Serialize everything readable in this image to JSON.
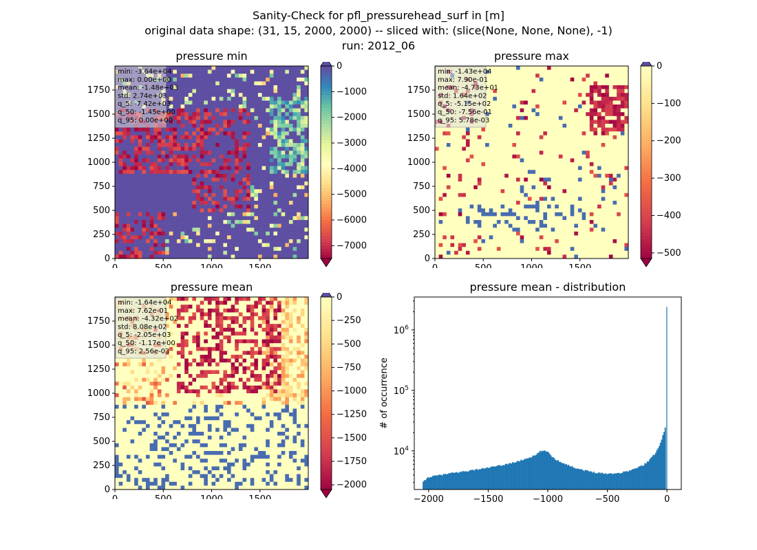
{
  "figure": {
    "suptitle_lines": [
      "Sanity-Check for pfl_pressurehead_surf in [m]",
      "original data shape: (31, 15, 2000, 2000) -- sliced with: (slice(None, None, None), -1)",
      "run: 2012_06"
    ]
  },
  "colors": {
    "spectral": [
      "#9e0142",
      "#d53e4f",
      "#f46d43",
      "#fdae61",
      "#fee08b",
      "#ffffbf",
      "#e6f598",
      "#abdda4",
      "#66c2a5",
      "#3288bd",
      "#5e4fa2"
    ]
  },
  "chart_data": [
    {
      "type": "heatmap",
      "title": "pressure min",
      "x_ticks": [
        "0",
        "500",
        "1000",
        "1500"
      ],
      "y_ticks": [
        "0",
        "250",
        "500",
        "750",
        "1000",
        "1250",
        "1500",
        "1750"
      ],
      "colorbar": {
        "ticks": [
          "0",
          "−1000",
          "−2000",
          "−3000",
          "−4000",
          "−5000",
          "−6000",
          "−7000"
        ],
        "vmin": -7500,
        "vmax": 0,
        "extend": "both"
      },
      "stats": [
        "min: -3.64e+04",
        "max: 0.00e+00",
        "mean: -1.48e+03",
        "std: 2.74e+03",
        "q_5: -7.42e+03",
        "q_50: -1.45e+00",
        "q_95: 0.00e+00"
      ]
    },
    {
      "type": "heatmap",
      "title": "pressure max",
      "x_ticks": [
        "0",
        "500",
        "1000",
        "1500"
      ],
      "y_ticks": [
        "0",
        "250",
        "500",
        "750",
        "1000",
        "1250",
        "1500",
        "1750"
      ],
      "colorbar": {
        "ticks": [
          "0",
          "−100",
          "−200",
          "−300",
          "−400",
          "−500"
        ],
        "vmin": -515,
        "vmax": 0,
        "extend": "both"
      },
      "stats": [
        "min: -1.43e+04",
        "max: 7.90e-01",
        "mean: -4.73e+01",
        "std: 1.64e+02",
        "q_5: -5.15e+02",
        "q_50: -7.56e-01",
        "q_95: 5.78e-03"
      ]
    },
    {
      "type": "heatmap",
      "title": "pressure mean",
      "x_ticks": [
        "0",
        "500",
        "1000",
        "1500"
      ],
      "y_ticks": [
        "0",
        "250",
        "500",
        "750",
        "1000",
        "1250",
        "1500",
        "1750"
      ],
      "colorbar": {
        "ticks": [
          "0",
          "−250",
          "−500",
          "−750",
          "−1000",
          "−1250",
          "−1500",
          "−1750",
          "−2000"
        ],
        "vmin": -2050,
        "vmax": 0,
        "extend": "both"
      },
      "stats": [
        "min: -1.64e+04",
        "max: 7.62e-01",
        "mean: -4.32e+02",
        "std: 8.08e+02",
        "q_5: -2.05e+03",
        "q_50: -1.17e+00",
        "q_95: 2.56e-03"
      ]
    },
    {
      "type": "bar",
      "title": "pressure mean - distribution",
      "ylabel": "# of occurrence",
      "x_ticks": [
        -2000,
        -1500,
        -1000,
        -500,
        0
      ],
      "xlim": [
        -2120,
        120
      ],
      "ylog_range": [
        2300,
        3500000
      ],
      "y_ticks": [
        {
          "v": 10000,
          "label": "10",
          "exp": "4"
        },
        {
          "v": 100000,
          "label": "10",
          "exp": "5"
        },
        {
          "v": 1000000,
          "label": "10",
          "exp": "6"
        }
      ],
      "bar_color": "#1f77b4",
      "bin_width": 10,
      "bins_profile": [
        [
          -2050,
          3000
        ],
        [
          -2000,
          3700
        ],
        [
          -1800,
          4300
        ],
        [
          -1600,
          4900
        ],
        [
          -1400,
          5700
        ],
        [
          -1250,
          6700
        ],
        [
          -1100,
          8500
        ],
        [
          -1060,
          10000
        ],
        [
          -1000,
          9800
        ],
        [
          -950,
          7500
        ],
        [
          -900,
          6700
        ],
        [
          -800,
          5500
        ],
        [
          -700,
          4800
        ],
        [
          -600,
          4400
        ],
        [
          -500,
          4200
        ],
        [
          -400,
          4300
        ],
        [
          -300,
          4800
        ],
        [
          -200,
          5800
        ],
        [
          -150,
          7000
        ],
        [
          -100,
          9000
        ],
        [
          -60,
          13000
        ],
        [
          -30,
          19000
        ],
        [
          -10,
          26000
        ],
        [
          0,
          2400000
        ]
      ]
    }
  ]
}
